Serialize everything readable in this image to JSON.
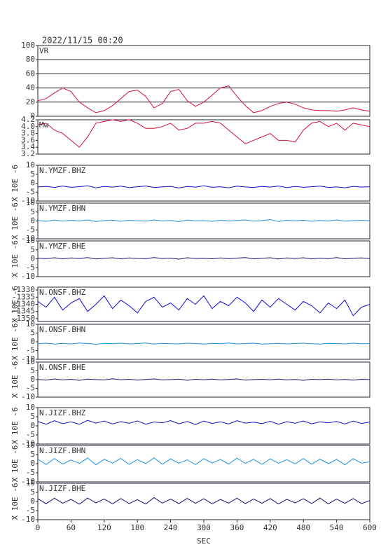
{
  "chart_data": [
    {
      "type": "line",
      "title": "2022/11/15 00:20",
      "x": [
        0,
        15,
        30,
        45,
        60,
        75,
        90,
        105,
        120,
        135,
        150,
        165,
        180,
        195,
        210,
        225,
        240,
        255,
        270,
        285,
        300,
        315,
        330,
        345,
        360,
        375,
        390,
        405,
        420,
        435,
        450,
        465,
        480,
        495,
        510,
        525,
        540,
        555,
        570,
        585,
        600
      ],
      "xlim": [
        0,
        600
      ],
      "ylim": [
        0,
        100
      ],
      "yticks": [
        0,
        20,
        40,
        60,
        80,
        100
      ],
      "grid": true,
      "series": [
        {
          "name": "VR",
          "color": "#d0103a",
          "values": [
            22,
            25,
            33,
            40,
            35,
            20,
            12,
            5,
            8,
            15,
            25,
            35,
            37,
            28,
            12,
            18,
            35,
            38,
            22,
            14,
            20,
            30,
            40,
            43,
            28,
            15,
            5,
            8,
            14,
            18,
            20,
            17,
            12,
            9,
            8,
            8,
            7,
            9,
            12,
            9,
            7
          ]
        }
      ]
    },
    {
      "type": "line",
      "x": [
        0,
        15,
        30,
        45,
        60,
        75,
        90,
        105,
        120,
        135,
        150,
        165,
        180,
        195,
        210,
        225,
        240,
        255,
        270,
        285,
        300,
        315,
        330,
        345,
        360,
        375,
        390,
        405,
        420,
        435,
        450,
        465,
        480,
        495,
        510,
        525,
        540,
        555,
        570,
        585,
        600
      ],
      "xlim": [
        0,
        600
      ],
      "ylim": [
        3.2,
        4.2
      ],
      "yticks": [
        3.2,
        3.4,
        3.6,
        3.8,
        {
          "value": 4,
          "label": "4.0"
        },
        4.2
      ],
      "grid": false,
      "series": [
        {
          "name": "Mw",
          "color": "#d0103a",
          "values": [
            4.05,
            4.1,
            3.9,
            3.8,
            3.6,
            3.4,
            3.7,
            4.1,
            4.15,
            4.2,
            4.15,
            4.2,
            4.1,
            3.95,
            3.95,
            4.0,
            4.1,
            3.9,
            3.95,
            4.1,
            4.1,
            4.15,
            4.1,
            3.9,
            3.7,
            3.5,
            3.6,
            3.7,
            3.8,
            3.6,
            3.6,
            3.55,
            3.9,
            4.1,
            4.15,
            4.0,
            4.1,
            3.9,
            4.1,
            4.05,
            4.0
          ]
        }
      ]
    },
    {
      "type": "line",
      "ylabel": "X 10E -6",
      "x": [
        0,
        15,
        30,
        45,
        60,
        75,
        90,
        105,
        120,
        135,
        150,
        165,
        180,
        195,
        210,
        225,
        240,
        255,
        270,
        285,
        300,
        315,
        330,
        345,
        360,
        375,
        390,
        405,
        420,
        435,
        450,
        465,
        480,
        495,
        510,
        525,
        540,
        555,
        570,
        585,
        600
      ],
      "xlim": [
        0,
        600
      ],
      "ylim": [
        -10,
        10
      ],
      "yticks": [
        -10,
        -5,
        0,
        5,
        10
      ],
      "grid": false,
      "series": [
        {
          "name": "N.YMZF.BHZ",
          "color": "#1010c8",
          "values": [
            -2.1,
            -1.8,
            -2.4,
            -1.6,
            -2.3,
            -2.0,
            -1.5,
            -2.6,
            -1.9,
            -2.2,
            -1.7,
            -2.5,
            -2.0,
            -1.6,
            -2.4,
            -2.1,
            -1.8,
            -2.7,
            -1.9,
            -2.2,
            -1.5,
            -2.3,
            -2.0,
            -2.6,
            -1.7,
            -2.1,
            -2.4,
            -1.8,
            -2.2,
            -1.6,
            -2.5,
            -1.9,
            -2.3,
            -2.0,
            -1.7,
            -2.4,
            -2.1,
            -2.6,
            -1.8,
            -2.2,
            -2.0
          ]
        }
      ]
    },
    {
      "type": "line",
      "ylabel": "X 10E -6",
      "x": [
        0,
        15,
        30,
        45,
        60,
        75,
        90,
        105,
        120,
        135,
        150,
        165,
        180,
        195,
        210,
        225,
        240,
        255,
        270,
        285,
        300,
        315,
        330,
        345,
        360,
        375,
        390,
        405,
        420,
        435,
        450,
        465,
        480,
        495,
        510,
        525,
        540,
        555,
        570,
        585,
        600
      ],
      "xlim": [
        0,
        600
      ],
      "ylim": [
        -10,
        10
      ],
      "yticks": [
        -10,
        -5,
        0,
        5,
        10
      ],
      "grid": false,
      "series": [
        {
          "name": "N.YMZF.BHN",
          "color": "#1e90e0",
          "values": [
            0.3,
            -0.2,
            0.5,
            -0.1,
            0.4,
            0.0,
            0.6,
            -0.3,
            0.2,
            0.5,
            -0.2,
            0.4,
            0.1,
            -0.1,
            0.6,
            0.0,
            0.3,
            -0.4,
            0.5,
            0.1,
            0.2,
            -0.2,
            0.4,
            0.0,
            0.3,
            0.6,
            -0.1,
            0.2,
            0.8,
            -0.3,
            0.4,
            0.1,
            0.5,
            -0.2,
            0.3,
            0.0,
            0.6,
            -0.1,
            0.2,
            0.4,
            0.1
          ]
        }
      ]
    },
    {
      "type": "line",
      "ylabel": "X 10E -6",
      "x": [
        0,
        15,
        30,
        45,
        60,
        75,
        90,
        105,
        120,
        135,
        150,
        165,
        180,
        195,
        210,
        225,
        240,
        255,
        270,
        285,
        300,
        315,
        330,
        345,
        360,
        375,
        390,
        405,
        420,
        435,
        450,
        465,
        480,
        495,
        510,
        525,
        540,
        555,
        570,
        585,
        600
      ],
      "xlim": [
        0,
        600
      ],
      "ylim": [
        -10,
        10
      ],
      "yticks": [
        -10,
        -5,
        0,
        5,
        10
      ],
      "grid": false,
      "series": [
        {
          "name": "N.YMZF.BHE",
          "color": "#101070",
          "values": [
            0.4,
            0.1,
            0.6,
            0.0,
            0.5,
            0.2,
            0.7,
            -0.1,
            0.3,
            0.6,
            0.0,
            0.5,
            0.2,
            0.1,
            0.7,
            0.2,
            0.4,
            -0.2,
            0.6,
            0.2,
            0.3,
            0.0,
            0.5,
            0.1,
            0.4,
            0.7,
            0.0,
            0.3,
            0.6,
            -0.1,
            0.5,
            0.2,
            0.6,
            0.0,
            0.4,
            0.1,
            0.7,
            0.0,
            0.3,
            0.5,
            0.2
          ]
        }
      ]
    },
    {
      "type": "line",
      "ylabel": "X 10E -6",
      "x": [
        0,
        15,
        30,
        45,
        60,
        75,
        90,
        105,
        120,
        135,
        150,
        165,
        180,
        195,
        210,
        225,
        240,
        255,
        270,
        285,
        300,
        315,
        330,
        345,
        360,
        375,
        390,
        405,
        420,
        435,
        450,
        465,
        480,
        495,
        510,
        525,
        540,
        555,
        570,
        585,
        600
      ],
      "xlim": [
        0,
        600
      ],
      "ylim": [
        -1352,
        -1328
      ],
      "yticks": [
        -1350,
        -1345,
        -1340,
        -1335,
        -1330
      ],
      "grid": false,
      "series": [
        {
          "name": "N.ONSF.BHZ",
          "color": "#1010c8",
          "values": [
            -1338,
            -1342,
            -1335,
            -1344,
            -1339,
            -1336,
            -1345,
            -1340,
            -1334,
            -1343,
            -1337,
            -1341,
            -1346,
            -1338,
            -1335,
            -1342,
            -1339,
            -1344,
            -1336,
            -1340,
            -1334,
            -1343,
            -1338,
            -1341,
            -1335,
            -1339,
            -1345,
            -1337,
            -1342,
            -1336,
            -1340,
            -1344,
            -1338,
            -1341,
            -1346,
            -1339,
            -1343,
            -1337,
            -1348,
            -1342,
            -1340
          ]
        }
      ]
    },
    {
      "type": "line",
      "ylabel": "X 10E -6",
      "x": [
        0,
        15,
        30,
        45,
        60,
        75,
        90,
        105,
        120,
        135,
        150,
        165,
        180,
        195,
        210,
        225,
        240,
        255,
        270,
        285,
        300,
        315,
        330,
        345,
        360,
        375,
        390,
        405,
        420,
        435,
        450,
        465,
        480,
        495,
        510,
        525,
        540,
        555,
        570,
        585,
        600
      ],
      "xlim": [
        0,
        600
      ],
      "ylim": [
        -10,
        10
      ],
      "yticks": [
        -10,
        -5,
        0,
        5,
        10
      ],
      "grid": false,
      "series": [
        {
          "name": "N.ONSF.BHN",
          "color": "#1e90e0",
          "values": [
            -1.1,
            -0.8,
            -1.3,
            -0.9,
            -1.2,
            -0.7,
            -1.0,
            -1.4,
            -0.9,
            -1.1,
            -0.8,
            -1.2,
            -1.0,
            -0.7,
            -1.3,
            -0.9,
            -1.1,
            -1.2,
            -0.8,
            -1.0,
            -1.3,
            -0.9,
            -1.1,
            -0.7,
            -1.2,
            -1.0,
            -0.8,
            -1.3,
            -1.1,
            -0.9,
            -1.2,
            -1.0,
            -0.8,
            -1.1,
            -1.3,
            -0.9,
            -1.0,
            -1.2,
            -0.8,
            -1.1,
            -1.0
          ]
        }
      ]
    },
    {
      "type": "line",
      "ylabel": "X 10E -6",
      "x": [
        0,
        15,
        30,
        45,
        60,
        75,
        90,
        105,
        120,
        135,
        150,
        165,
        180,
        195,
        210,
        225,
        240,
        255,
        270,
        285,
        300,
        315,
        330,
        345,
        360,
        375,
        390,
        405,
        420,
        435,
        450,
        465,
        480,
        495,
        510,
        525,
        540,
        555,
        570,
        585,
        600
      ],
      "xlim": [
        0,
        600
      ],
      "ylim": [
        -10,
        10
      ],
      "yticks": [
        -10,
        -5,
        0,
        5,
        10
      ],
      "grid": false,
      "series": [
        {
          "name": "N.ONSF.BHE",
          "color": "#101070",
          "values": [
            0.1,
            -0.3,
            0.4,
            -0.2,
            0.2,
            -0.4,
            0.3,
            0.0,
            -0.2,
            0.5,
            -0.1,
            0.2,
            -0.3,
            0.1,
            0.4,
            -0.2,
            0.0,
            0.3,
            -0.4,
            0.2,
            -0.1,
            0.3,
            -0.2,
            0.1,
            0.4,
            -0.3,
            0.0,
            0.2,
            -0.1,
            0.3,
            -0.2,
            0.1,
            -0.4,
            0.2,
            0.0,
            0.3,
            -0.2,
            0.1,
            -0.3,
            0.2,
            0.0
          ]
        }
      ]
    },
    {
      "type": "line",
      "ylabel": "X 10E -6",
      "x": [
        0,
        15,
        30,
        45,
        60,
        75,
        90,
        105,
        120,
        135,
        150,
        165,
        180,
        195,
        210,
        225,
        240,
        255,
        270,
        285,
        300,
        315,
        330,
        345,
        360,
        375,
        390,
        405,
        420,
        435,
        450,
        465,
        480,
        495,
        510,
        525,
        540,
        555,
        570,
        585,
        600
      ],
      "xlim": [
        0,
        600
      ],
      "ylim": [
        -10,
        10
      ],
      "yticks": [
        -10,
        -5,
        0,
        5,
        10
      ],
      "grid": false,
      "series": [
        {
          "name": "N.JIZF.BHZ",
          "color": "#1010c8",
          "values": [
            2.4,
            0.9,
            2.8,
            1.2,
            2.2,
            0.8,
            3.0,
            1.5,
            2.6,
            1.0,
            2.3,
            1.4,
            2.7,
            0.9,
            2.1,
            1.6,
            2.9,
            1.1,
            2.4,
            0.7,
            2.6,
            1.3,
            2.2,
            1.0,
            2.8,
            1.5,
            2.0,
            1.2,
            2.5,
            0.9,
            2.3,
            1.4,
            2.7,
            1.1,
            2.2,
            1.6,
            2.4,
            1.0,
            2.6,
            1.3,
            2.1
          ]
        }
      ]
    },
    {
      "type": "line",
      "ylabel": "X 10E -6",
      "x": [
        0,
        15,
        30,
        45,
        60,
        75,
        90,
        105,
        120,
        135,
        150,
        165,
        180,
        195,
        210,
        225,
        240,
        255,
        270,
        285,
        300,
        315,
        330,
        345,
        360,
        375,
        390,
        405,
        420,
        435,
        450,
        465,
        480,
        495,
        510,
        525,
        540,
        555,
        570,
        585,
        600
      ],
      "xlim": [
        0,
        600
      ],
      "ylim": [
        -10,
        10
      ],
      "yticks": [
        -10,
        -5,
        0,
        5,
        10
      ],
      "grid": false,
      "series": [
        {
          "name": "N.JIZF.BHN",
          "color": "#1e90e0",
          "values": [
            2.5,
            -0.5,
            2.8,
            -0.2,
            2.0,
            0.1,
            3.1,
            -0.6,
            2.4,
            0.3,
            2.9,
            -0.4,
            2.2,
            0.0,
            3.2,
            -0.3,
            2.6,
            0.2,
            2.1,
            -0.5,
            2.7,
            0.4,
            2.3,
            -0.2,
            3.0,
            0.1,
            2.4,
            -0.4,
            2.6,
            0.2,
            2.2,
            -0.1,
            2.8,
            -0.3,
            2.5,
            0.0,
            2.3,
            -0.6,
            2.7,
            0.3,
            1.0
          ]
        }
      ]
    },
    {
      "type": "line",
      "ylabel": "X 10E -6",
      "xlabel": "SEC",
      "x": [
        0,
        15,
        30,
        45,
        60,
        75,
        90,
        105,
        120,
        135,
        150,
        165,
        180,
        195,
        210,
        225,
        240,
        255,
        270,
        285,
        300,
        315,
        330,
        345,
        360,
        375,
        390,
        405,
        420,
        435,
        450,
        465,
        480,
        495,
        510,
        525,
        540,
        555,
        570,
        585,
        600
      ],
      "xlim": [
        0,
        600
      ],
      "xticks": [
        0,
        60,
        120,
        180,
        240,
        300,
        360,
        420,
        480,
        540,
        600
      ],
      "ylim": [
        -10,
        10
      ],
      "yticks": [
        -10,
        -5,
        0,
        5,
        10
      ],
      "grid": false,
      "series": [
        {
          "name": "N.JIZF.BHE",
          "color": "#101070",
          "values": [
            1.5,
            -1.2,
            1.8,
            -1.0,
            1.2,
            -1.5,
            1.9,
            -0.8,
            1.4,
            -1.3,
            1.6,
            -1.1,
            1.0,
            -1.4,
            2.1,
            -0.9,
            1.3,
            -1.2,
            1.7,
            -1.0,
            1.5,
            -1.3,
            1.1,
            -0.9,
            1.8,
            -1.2,
            1.4,
            -1.0,
            1.6,
            -1.4,
            1.2,
            -0.8,
            1.5,
            -1.1,
            1.9,
            -1.3,
            1.3,
            -1.0,
            1.6,
            -1.2,
            0.5
          ]
        }
      ]
    }
  ]
}
